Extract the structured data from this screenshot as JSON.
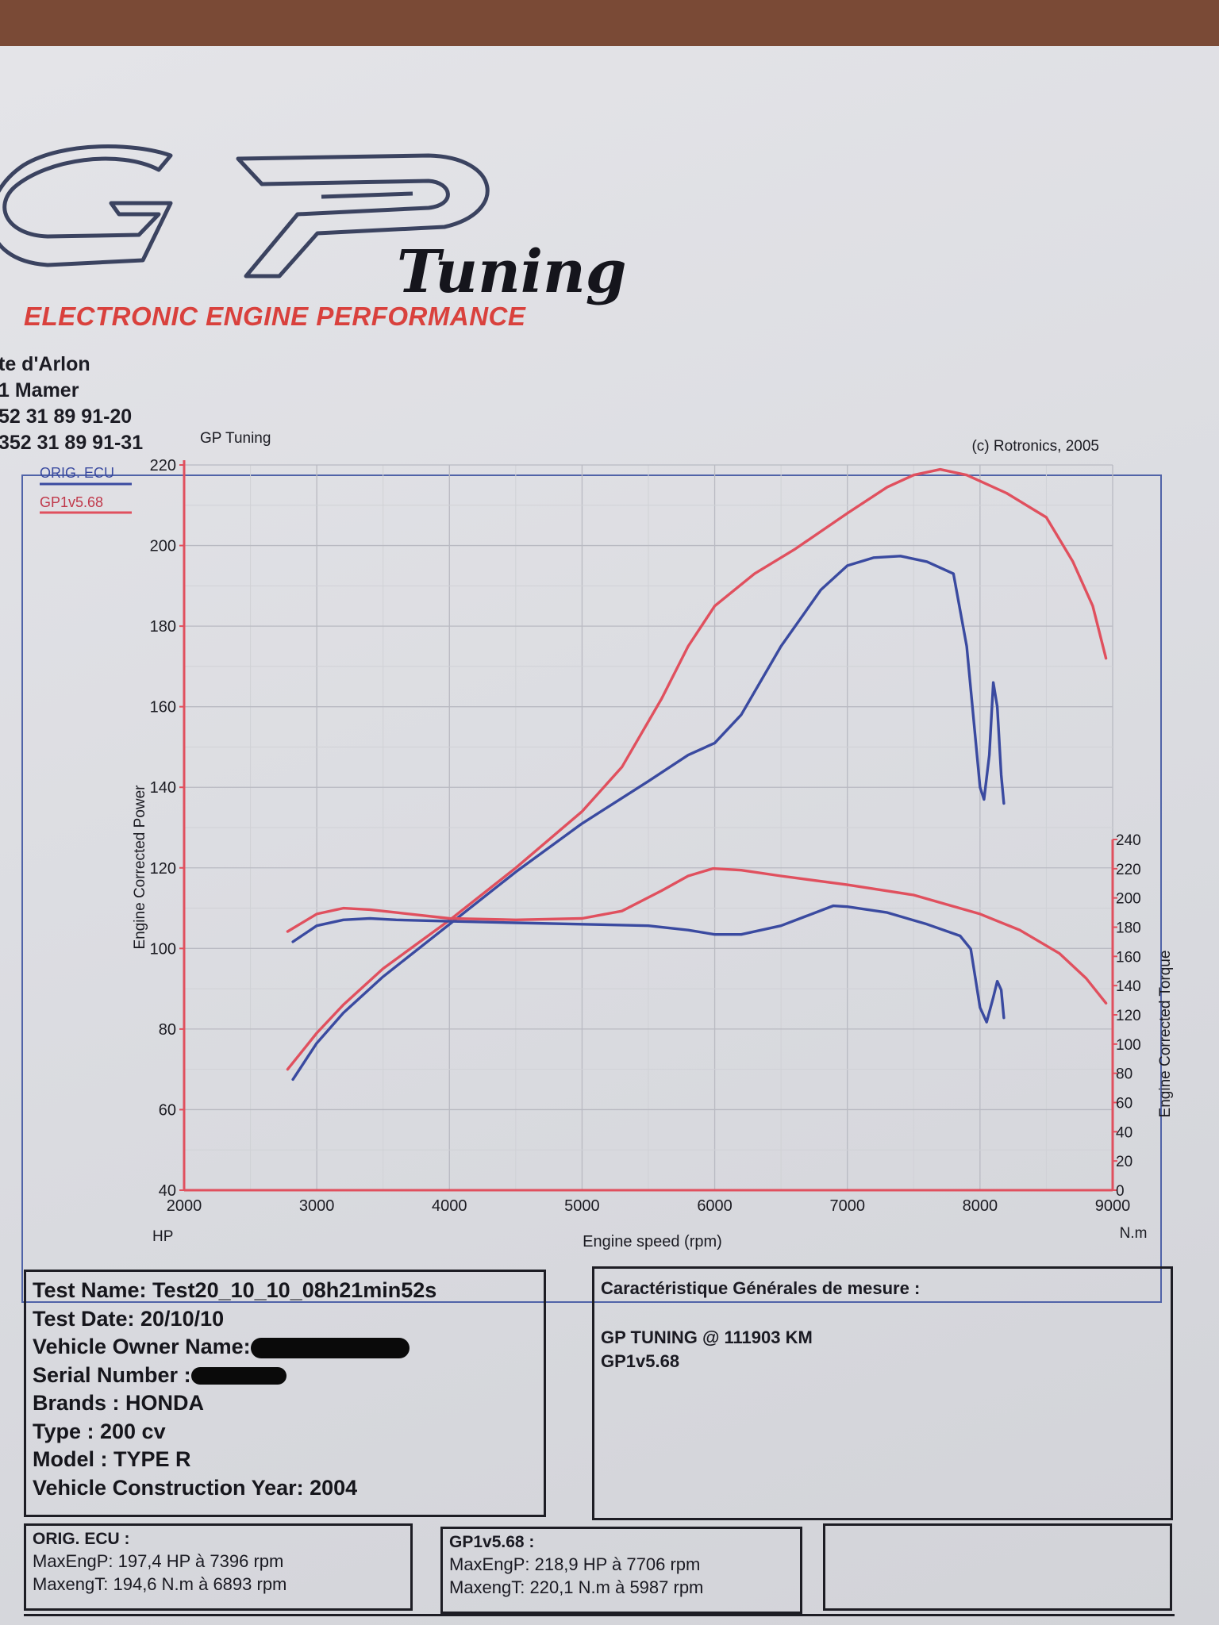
{
  "brand": {
    "logo_letters": "GP",
    "logo_word": "Tuning",
    "tagline": "ELECTRONIC ENGINE PERFORMANCE"
  },
  "address": {
    "lines": [
      "te d'Arlon",
      "1 Mamer",
      "52 31 89 91-20",
      "352 31 89 91-31"
    ]
  },
  "colors": {
    "orig": "#3a4aa0",
    "gp": "#e0505e",
    "grid": "#b9bac2",
    "frame": "#5063a8",
    "tagline": "#d9413d"
  },
  "chart_data": {
    "type": "line",
    "title": "GP Tuning",
    "copyright": "(c) Rotronics, 2005",
    "xlabel": "Engine speed (rpm)",
    "xunit_left": "HP",
    "xunit_right": "N.m",
    "ylabel_left": "Engine Corrected Power",
    "ylabel_right": "Engine Corrected Torque",
    "xlim": [
      2000,
      9000
    ],
    "ylim_left": [
      40,
      220
    ],
    "ylim_right": [
      0,
      240
    ],
    "xticks": [
      "2000",
      "3000",
      "4000",
      "5000",
      "6000",
      "7000",
      "8000",
      "9000"
    ],
    "yticks_left": [
      "40",
      "60",
      "80",
      "100",
      "120",
      "140",
      "160",
      "180",
      "200",
      "220"
    ],
    "yticks_right": [
      "0",
      "20",
      "40",
      "60",
      "80",
      "100",
      "120",
      "140",
      "160",
      "180",
      "200",
      "220",
      "240"
    ],
    "grid": true,
    "legend_position": "top-left",
    "series": [
      {
        "name": "ORIG. ECU",
        "axis": "left",
        "quantity": "power",
        "x": [
          2820,
          3000,
          3200,
          3500,
          4000,
          4500,
          5000,
          5500,
          5800,
          6000,
          6200,
          6500,
          6800,
          7000,
          7200,
          7400,
          7600,
          7800,
          7900,
          8000,
          8030,
          8070,
          8100,
          8130,
          8160,
          8180
        ],
        "y": [
          67.5,
          76.5,
          84,
          93,
          106,
          119,
          131,
          141.5,
          148,
          151,
          158,
          175,
          189,
          195,
          197,
          197.4,
          196,
          193,
          175,
          140,
          137,
          148,
          166,
          160,
          143,
          136
        ]
      },
      {
        "name": "GP1v5.68",
        "axis": "left",
        "quantity": "power",
        "x": [
          2780,
          3000,
          3200,
          3500,
          4000,
          4500,
          5000,
          5300,
          5600,
          5800,
          6000,
          6300,
          6600,
          7000,
          7300,
          7500,
          7700,
          7900,
          8200,
          8500,
          8700,
          8850,
          8950
        ],
        "y": [
          70,
          79,
          86,
          95,
          107,
          120,
          134,
          145,
          162,
          175,
          185,
          193,
          199,
          208,
          214.5,
          217.5,
          218.9,
          217.5,
          213,
          207,
          196,
          185,
          172
        ]
      },
      {
        "name": "ORIG. ECU",
        "axis": "right",
        "quantity": "torque",
        "x": [
          2820,
          3000,
          3200,
          3400,
          3600,
          4000,
          4500,
          5000,
          5500,
          5800,
          6000,
          6200,
          6500,
          6893,
          7000,
          7300,
          7600,
          7850,
          7930,
          8000,
          8050,
          8100,
          8130,
          8160,
          8180
        ],
        "y": [
          170,
          181,
          185,
          186,
          185,
          184,
          183,
          182,
          181,
          178,
          175,
          175,
          181,
          194.6,
          194,
          190,
          182,
          174,
          165,
          125,
          115,
          132,
          143,
          137,
          118
        ]
      },
      {
        "name": "GP1v5.68",
        "axis": "right",
        "quantity": "torque",
        "x": [
          2780,
          3000,
          3200,
          3400,
          3600,
          4000,
          4500,
          5000,
          5300,
          5600,
          5800,
          5987,
          6200,
          6500,
          7000,
          7500,
          8000,
          8300,
          8600,
          8800,
          8950
        ],
        "y": [
          177,
          189,
          193,
          192,
          190,
          186,
          185,
          186,
          191,
          205,
          215,
          220.1,
          219,
          215,
          209,
          202,
          189,
          178,
          162,
          145,
          128
        ]
      }
    ]
  },
  "test_info": {
    "name_line": "Test Name: Test20_10_10_08h21min52s",
    "date_line": "Test Date: 20/10/10",
    "owner_label": "Vehicle Owner Name:",
    "serial_label": "Serial Number  :",
    "brand_line": "Brands  : HONDA",
    "type_line": "Type  : 200 cv",
    "model_line": "Model  : TYPE R",
    "year_line": "Vehicle Construction Year: 2004"
  },
  "caracteristique": {
    "title": "Caractéristique Générales de mesure :",
    "line1": "GP TUNING  @ 111903 KM",
    "line2": "GP1v5.68"
  },
  "results": {
    "orig": {
      "title": "ORIG. ECU :",
      "power": "MaxEngP: 197,4 HP à 7396 rpm",
      "torque": "MaxengT: 194,6 N.m à 6893 rpm"
    },
    "gp": {
      "title": "GP1v5.68 :",
      "power": "MaxEngP: 218,9 HP à 7706 rpm",
      "torque": "MaxengT: 220,1 N.m à 5987 rpm"
    }
  }
}
